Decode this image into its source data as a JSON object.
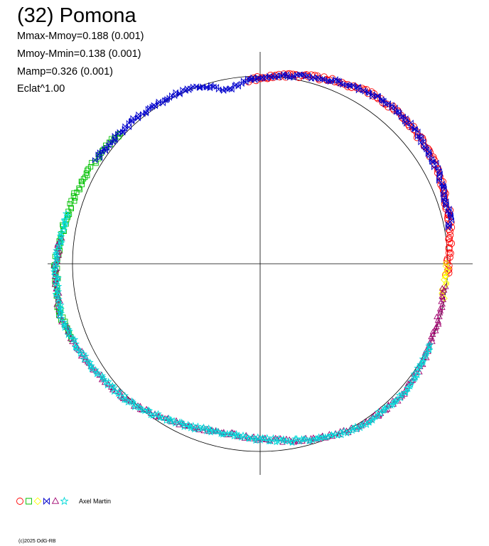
{
  "header": {
    "title": "(32) Pomona",
    "stats": [
      "Mmax-Mmoy=0.188 (0.001)",
      "Mmoy-Mmin=0.138 (0.001)",
      "Mamp=0.326 (0.001)",
      "Eclat^1.00"
    ]
  },
  "legend": {
    "label": "Axel Martin",
    "markers": [
      {
        "shape": "circle",
        "color": "#ff0000"
      },
      {
        "shape": "square",
        "color": "#00c000"
      },
      {
        "shape": "diamond",
        "color": "#ffff00"
      },
      {
        "shape": "bowtie",
        "color": "#0000cc"
      },
      {
        "shape": "triangle",
        "color": "#a0006e"
      },
      {
        "shape": "star",
        "color": "#00d8d8"
      }
    ]
  },
  "footer": {
    "copyright": "(c)2025 OdG-RB"
  },
  "chart_data": {
    "type": "scatter",
    "projection": "polar lightcurve: angle = rotational phase, radius = brightness",
    "reference_circle": true,
    "axes_crosshair": true,
    "series": [
      {
        "marker": "circle",
        "color": "#ff0000",
        "phase": [
          0.99,
          0.04
        ],
        "curve": "main"
      },
      {
        "marker": "circle",
        "color": "#ff0000",
        "phase": [
          0.04,
          0.26
        ],
        "curve": "main"
      },
      {
        "marker": "square",
        "color": "#00c000",
        "phase": [
          0.38,
          0.56
        ],
        "curve": "main"
      },
      {
        "marker": "diamond",
        "color": "#ffff00",
        "phase": [
          0.97,
          1.0
        ],
        "curve": "main"
      },
      {
        "marker": "bowtie",
        "color": "#0000cc",
        "phase": [
          0.03,
          0.41
        ],
        "curve": "main"
      },
      {
        "marker": "triangle",
        "color": "#a0006e",
        "phase": [
          0.48,
          0.98
        ],
        "curve": "main"
      },
      {
        "marker": "star",
        "color": "#00d8d8",
        "phase": [
          0.46,
          0.93
        ],
        "curve": "main"
      }
    ],
    "curve": {
      "main": [
        [
          0.0,
          1.0
        ],
        [
          0.02,
          1.02
        ],
        [
          0.04,
          1.04
        ],
        [
          0.06,
          1.05
        ],
        [
          0.08,
          1.07
        ],
        [
          0.1,
          1.08
        ],
        [
          0.12,
          1.09
        ],
        [
          0.14,
          1.09
        ],
        [
          0.16,
          1.08
        ],
        [
          0.18,
          1.06
        ],
        [
          0.2,
          1.04
        ],
        [
          0.22,
          1.02
        ],
        [
          0.24,
          1.0
        ],
        [
          0.25,
          0.99
        ],
        [
          0.26,
          0.98
        ],
        [
          0.27,
          0.96
        ],
        [
          0.28,
          0.94
        ],
        [
          0.29,
          0.97
        ],
        [
          0.3,
          1.0
        ],
        [
          0.32,
          1.01
        ],
        [
          0.34,
          1.01
        ],
        [
          0.36,
          1.02
        ],
        [
          0.38,
          1.02
        ],
        [
          0.4,
          1.03
        ],
        [
          0.42,
          1.04
        ],
        [
          0.44,
          1.05
        ],
        [
          0.46,
          1.06
        ],
        [
          0.48,
          1.07
        ],
        [
          0.5,
          1.09
        ],
        [
          0.52,
          1.09
        ],
        [
          0.54,
          1.1
        ],
        [
          0.56,
          1.08
        ],
        [
          0.58,
          1.06
        ],
        [
          0.6,
          1.04
        ],
        [
          0.62,
          1.02
        ],
        [
          0.64,
          1.0
        ],
        [
          0.66,
          0.97
        ],
        [
          0.68,
          0.95
        ],
        [
          0.7,
          0.93
        ],
        [
          0.72,
          0.92
        ],
        [
          0.74,
          0.93
        ],
        [
          0.76,
          0.94
        ],
        [
          0.78,
          0.96
        ],
        [
          0.8,
          0.98
        ],
        [
          0.82,
          1.0
        ],
        [
          0.84,
          1.02
        ],
        [
          0.86,
          1.02
        ],
        [
          0.88,
          1.03
        ],
        [
          0.9,
          1.02
        ],
        [
          0.92,
          1.01
        ],
        [
          0.94,
          1.0
        ],
        [
          0.96,
          0.99
        ],
        [
          0.98,
          0.99
        ],
        [
          1.0,
          1.0
        ]
      ]
    }
  }
}
